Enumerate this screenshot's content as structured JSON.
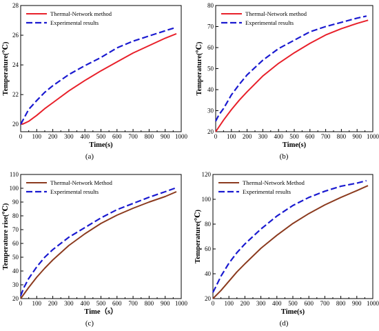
{
  "chart_data": [
    {
      "type": "line",
      "panel_label": "(a)",
      "xlabel": "Time(s)",
      "ylabel": "Temperature(℃)",
      "xlim": [
        0,
        1000
      ],
      "ylim": [
        19.5,
        28
      ],
      "xticks": [
        0,
        100,
        200,
        300,
        400,
        500,
        600,
        700,
        800,
        900,
        1000
      ],
      "yticks": [
        20,
        22,
        24,
        26,
        28
      ],
      "legend_position": "top-left",
      "grid": false,
      "series": [
        {
          "name": "Thermal-Network method",
          "color": "#e8202a",
          "style": "solid",
          "x": [
            0,
            20,
            50,
            100,
            150,
            200,
            300,
            400,
            500,
            600,
            700,
            800,
            900,
            970
          ],
          "y": [
            20.0,
            20.05,
            20.2,
            20.6,
            21.05,
            21.45,
            22.25,
            22.95,
            23.6,
            24.2,
            24.8,
            25.3,
            25.8,
            26.1
          ]
        },
        {
          "name": "Experimental results",
          "color": "#1a1ad0",
          "style": "dashed",
          "x": [
            0,
            20,
            50,
            100,
            150,
            200,
            300,
            400,
            500,
            600,
            700,
            800,
            900,
            960
          ],
          "y": [
            20.0,
            20.4,
            21.0,
            21.6,
            22.15,
            22.6,
            23.35,
            23.95,
            24.5,
            25.15,
            25.6,
            25.95,
            26.3,
            26.5
          ]
        }
      ]
    },
    {
      "type": "line",
      "panel_label": "(b)",
      "xlabel": "Time(s)",
      "ylabel": "Temperature(℃)",
      "xlim": [
        0,
        1000
      ],
      "ylim": [
        20,
        80
      ],
      "xticks": [
        0,
        100,
        200,
        300,
        400,
        500,
        600,
        700,
        800,
        900,
        1000
      ],
      "yticks": [
        20,
        30,
        40,
        50,
        60,
        70,
        80
      ],
      "legend_position": "top-left",
      "grid": false,
      "series": [
        {
          "name": "Thermal-Network method",
          "color": "#e8202a",
          "style": "solid",
          "x": [
            0,
            50,
            100,
            150,
            200,
            300,
            400,
            500,
            600,
            700,
            800,
            900,
            970
          ],
          "y": [
            20.0,
            25.5,
            30.5,
            35.0,
            39.0,
            46.5,
            52.5,
            57.5,
            62.0,
            66.0,
            69.0,
            71.5,
            73.0
          ]
        },
        {
          "name": "Experimental results",
          "color": "#1a1ad0",
          "style": "dashed",
          "x": [
            0,
            20,
            50,
            100,
            150,
            200,
            300,
            400,
            500,
            600,
            700,
            800,
            900,
            960
          ],
          "y": [
            25.0,
            28.0,
            31.0,
            37.5,
            42.5,
            47.0,
            54.0,
            59.5,
            63.5,
            67.5,
            70.0,
            72.0,
            74.0,
            75.0
          ]
        }
      ]
    },
    {
      "type": "line",
      "panel_label": "(c)",
      "xlabel": "Time（s）",
      "ylabel": "Temperature rise(℃)",
      "xlim": [
        0,
        1000
      ],
      "ylim": [
        20,
        110
      ],
      "xticks": [
        0,
        100,
        200,
        300,
        400,
        500,
        600,
        700,
        800,
        900,
        1000
      ],
      "yticks": [
        20,
        30,
        40,
        50,
        60,
        70,
        80,
        90,
        100,
        110
      ],
      "legend_position": "top-left",
      "grid": false,
      "series": [
        {
          "name": "Thermal-Network Method",
          "color": "#8b3a1e",
          "style": "solid",
          "x": [
            0,
            50,
            100,
            150,
            200,
            300,
            400,
            500,
            600,
            700,
            800,
            900,
            970
          ],
          "y": [
            20.0,
            28.0,
            35.5,
            42.0,
            48.0,
            58.5,
            67.0,
            74.5,
            80.5,
            85.5,
            90.0,
            94.0,
            97.5
          ]
        },
        {
          "name": "Experimental results",
          "color": "#1a1ad0",
          "style": "dashed",
          "x": [
            0,
            20,
            50,
            100,
            150,
            200,
            300,
            400,
            500,
            600,
            700,
            800,
            900,
            960
          ],
          "y": [
            22.0,
            28.0,
            34.5,
            43.0,
            50.0,
            55.5,
            64.5,
            71.5,
            78.5,
            84.5,
            89.0,
            93.5,
            97.5,
            100.0
          ]
        }
      ]
    },
    {
      "type": "line",
      "panel_label": "(d)",
      "xlabel": "Time(s)",
      "ylabel": "Temperature(℃)",
      "xlim": [
        0,
        1000
      ],
      "ylim": [
        20,
        120
      ],
      "xticks": [
        0,
        100,
        200,
        300,
        400,
        500,
        600,
        700,
        800,
        900,
        1000
      ],
      "yticks": [
        20,
        40,
        60,
        80,
        100,
        120
      ],
      "legend_position": "top-left",
      "grid": false,
      "series": [
        {
          "name": "Thermal-Network Method",
          "color": "#8b3a1e",
          "style": "solid",
          "x": [
            0,
            50,
            100,
            150,
            200,
            300,
            400,
            500,
            600,
            700,
            800,
            900,
            970
          ],
          "y": [
            20.0,
            26.5,
            34.0,
            41.5,
            48.0,
            60.5,
            71.0,
            80.5,
            88.5,
            95.5,
            101.5,
            107.0,
            111.0
          ]
        },
        {
          "name": "Experimental results",
          "color": "#1a1ad0",
          "style": "dashed",
          "x": [
            0,
            20,
            50,
            100,
            150,
            200,
            300,
            400,
            500,
            600,
            700,
            800,
            900,
            960
          ],
          "y": [
            25.0,
            30.0,
            38.0,
            48.5,
            57.0,
            64.0,
            76.0,
            86.5,
            95.0,
            101.5,
            106.5,
            110.5,
            113.0,
            115.0
          ]
        }
      ]
    }
  ]
}
